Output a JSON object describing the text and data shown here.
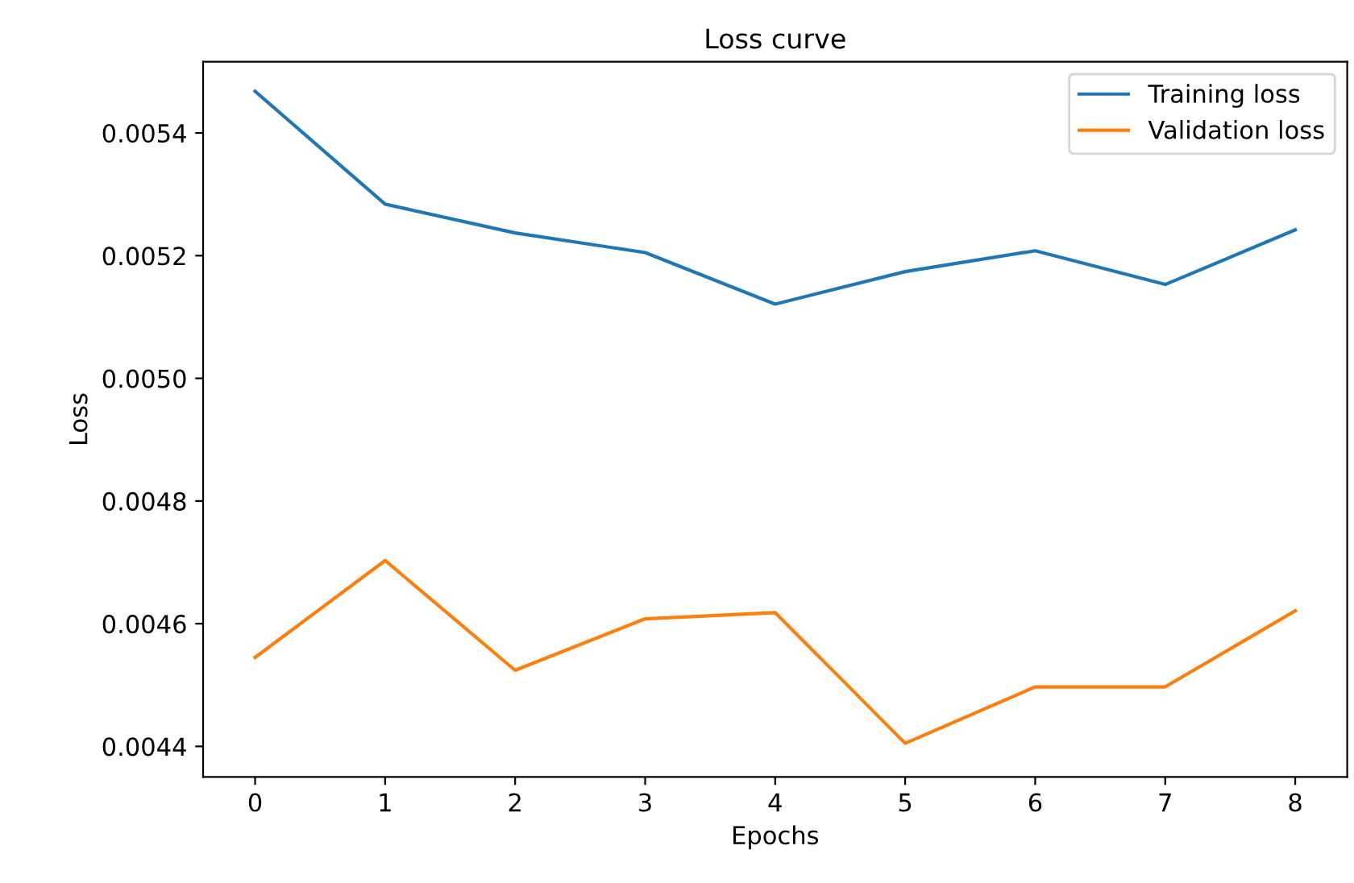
{
  "chart_data": {
    "type": "line",
    "title": "Loss curve",
    "xlabel": "Epochs",
    "ylabel": "Loss",
    "x": [
      0,
      1,
      2,
      3,
      4,
      5,
      6,
      7,
      8
    ],
    "series": [
      {
        "name": "Training loss",
        "color": "#1f77b4",
        "values": [
          0.005468,
          0.005284,
          0.005237,
          0.005205,
          0.005121,
          0.005174,
          0.005208,
          0.005153,
          0.005242
        ]
      },
      {
        "name": "Validation loss",
        "color": "#ff7f0e",
        "values": [
          0.004545,
          0.004703,
          0.004524,
          0.004608,
          0.004618,
          0.004405,
          0.004497,
          0.004497,
          0.004621
        ]
      }
    ],
    "xlim": [
      -0.4,
      8.4
    ],
    "xticks": [
      0,
      1,
      2,
      3,
      4,
      5,
      6,
      7,
      8
    ],
    "ylim": [
      0.00435,
      0.005516
    ],
    "yticks": [
      0.0044,
      0.0046,
      0.0048,
      {
        "value": 0.005,
        "label": "0.0050"
      },
      0.0052,
      0.0054
    ],
    "grid": false,
    "legend": "top right"
  }
}
